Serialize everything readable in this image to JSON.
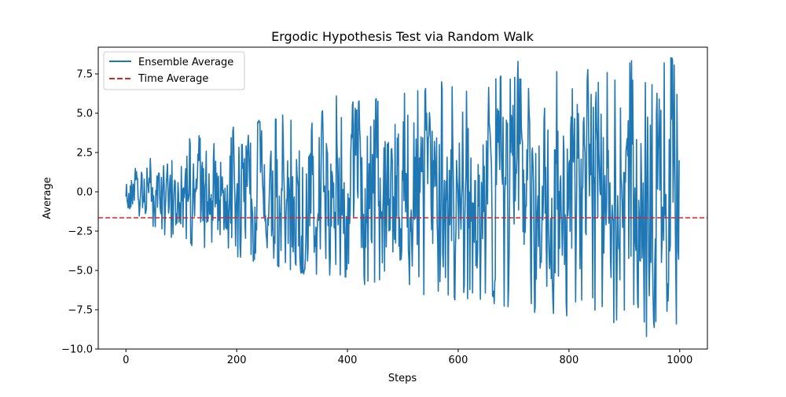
{
  "chart_data": {
    "type": "line",
    "title": "Ergodic Hypothesis Test via Random Walk",
    "xlabel": "Steps",
    "ylabel": "Average",
    "xlim": [
      -50,
      1050
    ],
    "ylim": [
      -10,
      9.2
    ],
    "xticks": [
      0,
      200,
      400,
      600,
      800,
      1000
    ],
    "yticks": [
      -10.0,
      -7.5,
      -5.0,
      -2.5,
      0.0,
      2.5,
      5.0,
      7.5
    ],
    "xtick_labels": [
      "0",
      "200",
      "400",
      "600",
      "800",
      "1000"
    ],
    "ytick_labels": [
      "−10.0",
      "−7.5",
      "−5.0",
      "−2.5",
      "0.0",
      "2.5",
      "5.0",
      "7.5"
    ],
    "grid": false,
    "legend_position": "top-left",
    "series": [
      {
        "name": "Ensemble Average",
        "color": "#1f77b4",
        "style": "solid",
        "x_start": 0,
        "x_step": 1,
        "n_points": 1000,
        "envelope_growth": "amplitude grows roughly with sqrt(step)",
        "anchor_points": [
          {
            "x": 0,
            "y": -0.3
          },
          {
            "x": 155,
            "y": -3.2
          },
          {
            "x": 380,
            "y": 6.1
          },
          {
            "x": 430,
            "y": -5.4
          },
          {
            "x": 570,
            "y": 7.0
          },
          {
            "x": 610,
            "y": -6.4
          },
          {
            "x": 690,
            "y": -7.3
          },
          {
            "x": 708,
            "y": 8.3
          },
          {
            "x": 812,
            "y": -7.0
          },
          {
            "x": 860,
            "y": -7.3
          },
          {
            "x": 910,
            "y": 8.2
          },
          {
            "x": 940,
            "y": -9.2
          },
          {
            "x": 972,
            "y": 8.2
          },
          {
            "x": 995,
            "y": 6.2
          },
          {
            "x": 999,
            "y": 2.0
          }
        ]
      },
      {
        "name": "Time Average",
        "color": "#d62728",
        "style": "dashed",
        "y": -1.65
      }
    ]
  }
}
